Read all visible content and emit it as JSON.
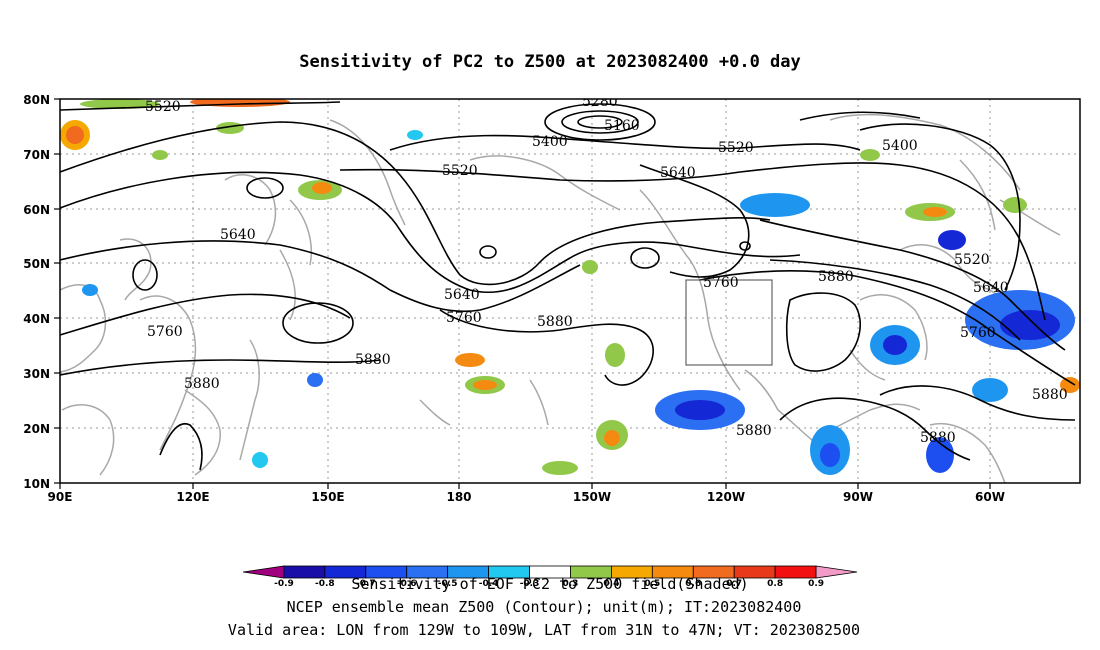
{
  "title": "Sensitivity of PC2 to Z500 at 2023082400 +0.0 day",
  "lat_labels": [
    "80N",
    "70N",
    "60N",
    "50N",
    "40N",
    "30N",
    "20N",
    "10N"
  ],
  "lon_labels": [
    "90E",
    "120E",
    "150E",
    "180",
    "150W",
    "120W",
    "90W",
    "60W"
  ],
  "contour_labels": [
    "5520",
    "5280",
    "5160",
    "5400",
    "5520",
    "5640",
    "5400",
    "5520",
    "5640",
    "5760",
    "5880",
    "5640",
    "5760",
    "5880",
    "5760",
    "5880",
    "5880",
    "5520",
    "5640",
    "5760",
    "5880",
    "5880",
    "5880"
  ],
  "colorbar": {
    "labels": [
      "-0.9",
      "-0.8",
      "-0.7",
      "-0.6",
      "-0.5",
      "-0.4",
      "-0.3",
      "0.3",
      "0.4",
      "0.5",
      "0.6",
      "0.7",
      "0.8",
      "0.9"
    ],
    "colors": [
      "#a0007f",
      "#1a0ea8",
      "#1428d6",
      "#1d4ff0",
      "#2b6ff2",
      "#1e96f0",
      "#22c8f0",
      "#ffffff",
      "#92c84a",
      "#f5a800",
      "#f58a10",
      "#f06a20",
      "#e83a1a",
      "#f21010",
      "#f29ac8"
    ]
  },
  "footer": {
    "line1": "Sensitivity of EOF PC2 to Z500 field(Shaded)",
    "line2": "NCEP ensemble mean Z500 (Contour); unit(m); IT:2023082400",
    "line3": "Valid area: LON from 129W to 109W, LAT from 31N to 47N; VT: 2023082500"
  }
}
